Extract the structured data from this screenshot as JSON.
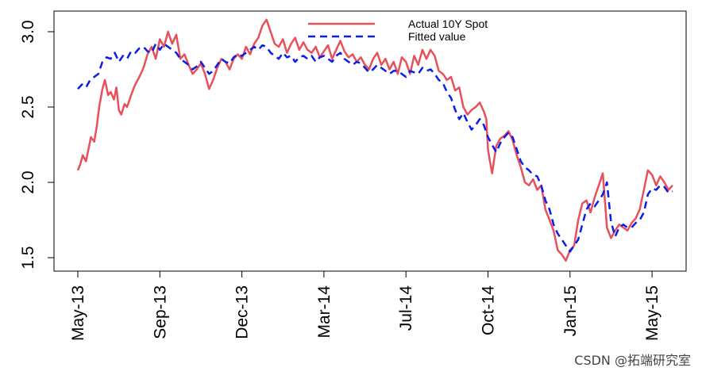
{
  "chart_data": {
    "type": "line",
    "title": "",
    "xlabel": "",
    "ylabel": "",
    "x_ticks": [
      "May-13",
      "Sep-13",
      "Dec-13",
      "Mar-14",
      "Jul-14",
      "Oct-14",
      "Jan-15",
      "May-15"
    ],
    "y_ticks": [
      "1.5",
      "2.0",
      "2.5",
      "3.0"
    ],
    "ylim": [
      1.42,
      3.1
    ],
    "xlim": [
      -0.08,
      7.4
    ],
    "legend_placement": "top-center",
    "grid": false,
    "series": [
      {
        "name": "Actual 10Y Spot",
        "color": "#e8505b",
        "style": "solid",
        "x": [
          0,
          0.03,
          0.06,
          0.1,
          0.13,
          0.16,
          0.2,
          0.23,
          0.26,
          0.3,
          0.33,
          0.37,
          0.4,
          0.44,
          0.47,
          0.5,
          0.53,
          0.57,
          0.6,
          0.65,
          0.7,
          0.75,
          0.8,
          0.85,
          0.9,
          0.95,
          1.0,
          1.05,
          1.1,
          1.15,
          1.2,
          1.25,
          1.3,
          1.35,
          1.4,
          1.45,
          1.5,
          1.55,
          1.6,
          1.65,
          1.7,
          1.75,
          1.8,
          1.85,
          1.9,
          1.95,
          2.0,
          2.05,
          2.1,
          2.15,
          2.2,
          2.25,
          2.3,
          2.35,
          2.4,
          2.45,
          2.5,
          2.55,
          2.6,
          2.65,
          2.7,
          2.75,
          2.8,
          2.85,
          2.9,
          2.95,
          3.0,
          3.05,
          3.1,
          3.15,
          3.2,
          3.25,
          3.3,
          3.35,
          3.4,
          3.45,
          3.5,
          3.55,
          3.6,
          3.65,
          3.7,
          3.75,
          3.8,
          3.85,
          3.9,
          3.95,
          4.0,
          4.05,
          4.1,
          4.15,
          4.2,
          4.25,
          4.3,
          4.35,
          4.4,
          4.45,
          4.5,
          4.55,
          4.6,
          4.65,
          4.7,
          4.75,
          4.8,
          4.85,
          4.9,
          4.95,
          4.98,
          5.0,
          5.02,
          5.05,
          5.1,
          5.15,
          5.2,
          5.25,
          5.3,
          5.35,
          5.4,
          5.45,
          5.5,
          5.55,
          5.6,
          5.65,
          5.7,
          5.75,
          5.8,
          5.85,
          5.9,
          5.95,
          6.0,
          6.05,
          6.1,
          6.15,
          6.2,
          6.25,
          6.3,
          6.35,
          6.4,
          6.45,
          6.5,
          6.55,
          6.6,
          6.65,
          6.7,
          6.75,
          6.8,
          6.85,
          6.9,
          6.95,
          7.0,
          7.05,
          7.1,
          7.15,
          7.2,
          7.25
        ],
        "y": [
          2.08,
          2.12,
          2.18,
          2.14,
          2.22,
          2.3,
          2.27,
          2.37,
          2.5,
          2.62,
          2.68,
          2.58,
          2.6,
          2.55,
          2.63,
          2.48,
          2.45,
          2.52,
          2.5,
          2.58,
          2.65,
          2.7,
          2.76,
          2.85,
          2.9,
          2.82,
          2.95,
          2.9,
          3.0,
          2.92,
          2.98,
          2.82,
          2.85,
          2.78,
          2.72,
          2.75,
          2.79,
          2.72,
          2.62,
          2.68,
          2.76,
          2.82,
          2.8,
          2.75,
          2.82,
          2.85,
          2.82,
          2.9,
          2.85,
          2.92,
          2.96,
          3.04,
          3.08,
          3.0,
          2.92,
          2.9,
          2.95,
          2.86,
          2.92,
          2.96,
          2.88,
          2.93,
          2.88,
          2.86,
          2.9,
          2.83,
          2.87,
          2.91,
          2.82,
          2.88,
          2.94,
          2.87,
          2.83,
          2.85,
          2.8,
          2.83,
          2.78,
          2.75,
          2.82,
          2.86,
          2.78,
          2.82,
          2.75,
          2.8,
          2.72,
          2.83,
          2.8,
          2.72,
          2.84,
          2.78,
          2.88,
          2.82,
          2.88,
          2.84,
          2.74,
          2.72,
          2.68,
          2.7,
          2.61,
          2.63,
          2.5,
          2.45,
          2.48,
          2.5,
          2.53,
          2.47,
          2.42,
          2.22,
          2.15,
          2.06,
          2.24,
          2.29,
          2.31,
          2.34,
          2.28,
          2.18,
          2.1,
          2.0,
          1.98,
          2.02,
          1.95,
          1.98,
          1.82,
          1.75,
          1.68,
          1.55,
          1.52,
          1.48,
          1.55,
          1.58,
          1.75,
          1.86,
          1.88,
          1.8,
          1.9,
          1.98,
          2.06,
          1.7,
          1.63,
          1.68,
          1.72,
          1.7,
          1.68,
          1.73,
          1.76,
          1.82,
          1.95,
          2.08,
          2.05,
          1.98,
          2.04,
          2.0,
          1.95,
          1.98
        ]
      },
      {
        "name": "Fitted value",
        "color": "#0a1ee8",
        "style": "dashed",
        "x": [
          0,
          0.05,
          0.1,
          0.15,
          0.2,
          0.25,
          0.3,
          0.35,
          0.4,
          0.45,
          0.5,
          0.55,
          0.6,
          0.65,
          0.7,
          0.75,
          0.8,
          0.85,
          0.9,
          0.95,
          1.0,
          1.05,
          1.1,
          1.15,
          1.2,
          1.25,
          1.3,
          1.35,
          1.4,
          1.45,
          1.5,
          1.55,
          1.6,
          1.65,
          1.7,
          1.75,
          1.8,
          1.85,
          1.9,
          1.95,
          2.0,
          2.05,
          2.1,
          2.15,
          2.2,
          2.25,
          2.3,
          2.35,
          2.4,
          2.45,
          2.5,
          2.55,
          2.6,
          2.65,
          2.7,
          2.75,
          2.8,
          2.85,
          2.9,
          2.95,
          3.0,
          3.05,
          3.1,
          3.15,
          3.2,
          3.25,
          3.3,
          3.35,
          3.4,
          3.45,
          3.5,
          3.55,
          3.6,
          3.65,
          3.7,
          3.75,
          3.8,
          3.85,
          3.9,
          3.95,
          4.0,
          4.05,
          4.1,
          4.15,
          4.2,
          4.25,
          4.3,
          4.35,
          4.4,
          4.45,
          4.5,
          4.55,
          4.6,
          4.65,
          4.7,
          4.75,
          4.8,
          4.85,
          4.9,
          4.95,
          5.0,
          5.05,
          5.1,
          5.15,
          5.2,
          5.25,
          5.3,
          5.35,
          5.4,
          5.45,
          5.5,
          5.55,
          5.6,
          5.65,
          5.7,
          5.75,
          5.8,
          5.85,
          5.9,
          5.95,
          6.0,
          6.05,
          6.1,
          6.15,
          6.2,
          6.25,
          6.3,
          6.35,
          6.4,
          6.45,
          6.5,
          6.55,
          6.6,
          6.65,
          6.7,
          6.75,
          6.8,
          6.85,
          6.9,
          6.95,
          7.0,
          7.05,
          7.1,
          7.15,
          7.2,
          7.25
        ],
        "y": [
          2.62,
          2.65,
          2.63,
          2.68,
          2.7,
          2.72,
          2.8,
          2.83,
          2.82,
          2.86,
          2.8,
          2.84,
          2.82,
          2.87,
          2.86,
          2.89,
          2.9,
          2.87,
          2.86,
          2.92,
          2.88,
          2.92,
          2.9,
          2.88,
          2.86,
          2.82,
          2.8,
          2.78,
          2.75,
          2.77,
          2.8,
          2.76,
          2.72,
          2.74,
          2.78,
          2.82,
          2.8,
          2.79,
          2.83,
          2.85,
          2.84,
          2.86,
          2.88,
          2.9,
          2.88,
          2.91,
          2.9,
          2.86,
          2.84,
          2.82,
          2.86,
          2.83,
          2.84,
          2.8,
          2.83,
          2.84,
          2.82,
          2.84,
          2.8,
          2.83,
          2.84,
          2.82,
          2.8,
          2.84,
          2.86,
          2.82,
          2.8,
          2.78,
          2.8,
          2.79,
          2.76,
          2.73,
          2.75,
          2.78,
          2.76,
          2.74,
          2.72,
          2.74,
          2.74,
          2.72,
          2.7,
          2.74,
          2.73,
          2.72,
          2.76,
          2.74,
          2.75,
          2.72,
          2.68,
          2.66,
          2.6,
          2.56,
          2.48,
          2.42,
          2.46,
          2.4,
          2.35,
          2.38,
          2.42,
          2.38,
          2.3,
          2.25,
          2.2,
          2.26,
          2.3,
          2.33,
          2.3,
          2.22,
          2.14,
          2.1,
          2.08,
          2.05,
          2.04,
          1.98,
          1.88,
          1.82,
          1.72,
          1.66,
          1.62,
          1.58,
          1.54,
          1.58,
          1.62,
          1.72,
          1.82,
          1.86,
          1.84,
          1.88,
          1.92,
          2.0,
          1.74,
          1.64,
          1.7,
          1.72,
          1.7,
          1.7,
          1.73,
          1.75,
          1.8,
          1.92,
          1.96,
          1.95,
          1.98,
          1.97,
          1.93,
          1.94
        ]
      }
    ]
  },
  "watermark": "CSDN @拓端研究室"
}
